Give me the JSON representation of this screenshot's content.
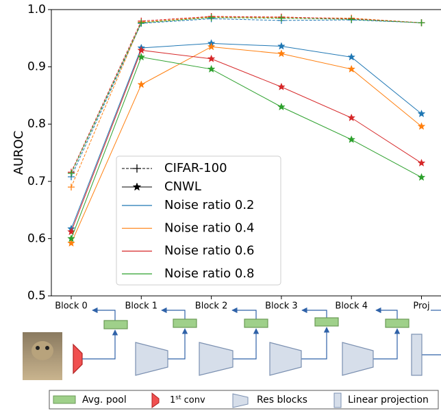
{
  "chart_data": {
    "type": "line",
    "y_label": "AUROC",
    "categories": [
      "Block 0",
      "Block 1",
      "Block 2",
      "Block 3",
      "Block 4",
      "Proj"
    ],
    "ylim": [
      0.5,
      1.0
    ],
    "yticks": [
      0.5,
      0.6,
      0.7,
      0.8,
      0.9,
      {
        "value": 1.0,
        "label": "1.0"
      }
    ],
    "noise_ratios": [
      {
        "name": "Noise ratio 0.2",
        "color": "#1f77b4"
      },
      {
        "name": "Noise ratio 0.4",
        "color": "#ff7f0e"
      },
      {
        "name": "Noise ratio 0.6",
        "color": "#d62728"
      },
      {
        "name": "Noise ratio 0.8",
        "color": "#2ca02c"
      }
    ],
    "datasets": [
      {
        "name": "CIFAR-100",
        "dashed": true,
        "marker": "plus",
        "series": [
          {
            "values": [
              0.708,
              0.976,
              0.984,
              0.981,
              0.982,
              0.977
            ]
          },
          {
            "values": [
              0.69,
              0.978,
              0.987,
              0.986,
              0.985,
              0.977
            ]
          },
          {
            "values": [
              0.716,
              0.98,
              0.988,
              0.987,
              0.984,
              0.977
            ]
          },
          {
            "values": [
              0.714,
              0.977,
              0.986,
              0.985,
              0.983,
              0.977
            ]
          }
        ]
      },
      {
        "name": "CNWL",
        "dashed": false,
        "marker": "star",
        "series": [
          {
            "values": [
              0.617,
              0.933,
              0.941,
              0.936,
              0.917,
              0.818
            ]
          },
          {
            "values": [
              0.592,
              0.869,
              0.935,
              0.923,
              0.896,
              0.796
            ]
          },
          {
            "values": [
              0.612,
              0.929,
              0.914,
              0.865,
              0.811,
              0.732
            ]
          },
          {
            "values": [
              0.6,
              0.917,
              0.896,
              0.83,
              0.773,
              0.707
            ]
          }
        ]
      }
    ]
  },
  "diagram_legend": {
    "avg_pool": "Avg. pool",
    "conv": [
      "1",
      "st",
      " conv"
    ],
    "res_blocks": "Res blocks",
    "linear": "Linear projection"
  }
}
